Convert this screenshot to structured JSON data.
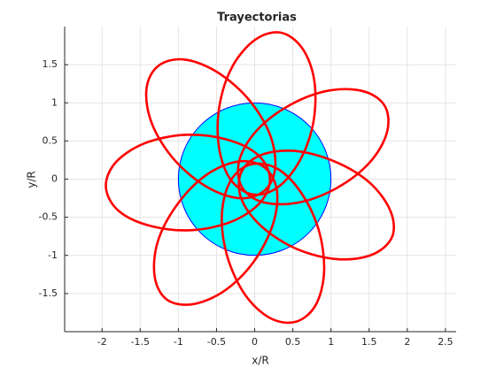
{
  "chart_data": {
    "type": "line",
    "title": "Trayectorias",
    "x_label": "x/R",
    "y_label": "y/R",
    "xlim": [
      -2.49,
      2.64
    ],
    "ylim": [
      -2,
      2
    ],
    "xticks": [
      -2,
      -1.5,
      -1,
      -0.5,
      0,
      0.5,
      1,
      1.5,
      2,
      2.5
    ],
    "yticks": [
      -1.5,
      -1,
      -0.5,
      0,
      0.5,
      1,
      1.5
    ],
    "grid": true,
    "circle": {
      "radius": 1,
      "fill": "#00ffff",
      "edge": "#0000ff"
    },
    "series": [
      {
        "color": "#ff0000",
        "x": [
          0.34,
          0.01,
          -0.29,
          -0.46,
          -0.47,
          -0.32,
          -0.03,
          0.3,
          0.59,
          0.77,
          0.78,
          0.62
        ],
        "y": [
          1.92,
          1.83,
          1.48,
          0.97,
          0.43,
          0,
          -0.2,
          -0.11,
          0.24,
          0.75,
          1.3,
          1.72
        ]
      },
      {
        "color": "#ff0000",
        "x": [
          1.71,
          1.43,
          0.97,
          0.46,
          0.03,
          -0.2,
          -0.17,
          0.1,
          0.56,
          1.07,
          1.5,
          1.73
        ],
        "y": [
          0.95,
          1.15,
          1.16,
          0.97,
          0.64,
          0.25,
          -0.1,
          -0.3,
          -0.31,
          -0.12,
          0.21,
          0.6
        ]
      },
      {
        "color": "#ff0000",
        "x": [
          1.8,
          1.78,
          1.51,
          1.05,
          0.52,
          0.07,
          -0.18,
          -0.17,
          0.1,
          0.56,
          1.09,
          1.54
        ],
        "y": [
          -0.76,
          -0.42,
          -0.05,
          0.23,
          0.37,
          0.31,
          0.08,
          -0.27,
          -0.63,
          -0.92,
          -1.05,
          -0.99
        ]
      },
      {
        "color": "#ff0000",
        "x": [
          0.54,
          0.8,
          0.91,
          0.84,
          0.61,
          0.29,
          -0.06,
          -0.32,
          -0.43,
          -0.36,
          -0.13,
          0.2
        ],
        "y": [
          -1.87,
          -1.65,
          -1.21,
          -0.67,
          -0.18,
          0.14,
          0.19,
          -0.03,
          -0.47,
          -1.01,
          -1.51,
          -1.82
        ]
      },
      {
        "color": "#ff0000",
        "x": [
          -1.15,
          -0.81,
          -0.39,
          -0.01,
          0.24,
          0.29,
          0.12,
          -0.22,
          -0.64,
          -1.02,
          -1.27,
          -1.31
        ],
        "y": [
          -1.58,
          -1.64,
          -1.46,
          -1.08,
          -0.59,
          -0.14,
          0.16,
          0.23,
          0.05,
          -0.34,
          -0.82,
          -1.28
        ]
      },
      {
        "color": "#ff0000",
        "x": [
          -1.95,
          -1.79,
          -1.38,
          -0.84,
          -0.31,
          0.07,
          0.2,
          0.04,
          -0.37,
          -0.91,
          -1.44,
          -1.82
        ],
        "y": [
          -0.1,
          -0.41,
          -0.61,
          -0.67,
          -0.56,
          -0.31,
          0.01,
          0.32,
          0.52,
          0.58,
          0.47,
          0.22
        ]
      },
      {
        "color": "#ff0000",
        "x": [
          -1.28,
          -1.42,
          -1.34,
          -1.05,
          -0.63,
          -0.2,
          0.13,
          0.27,
          0.19,
          -0.1,
          -0.52,
          -0.95
        ],
        "y": [
          1.47,
          1.16,
          0.71,
          0.25,
          -0.1,
          -0.25,
          -0.15,
          0.16,
          0.61,
          1.07,
          1.42,
          1.57
        ]
      }
    ]
  }
}
